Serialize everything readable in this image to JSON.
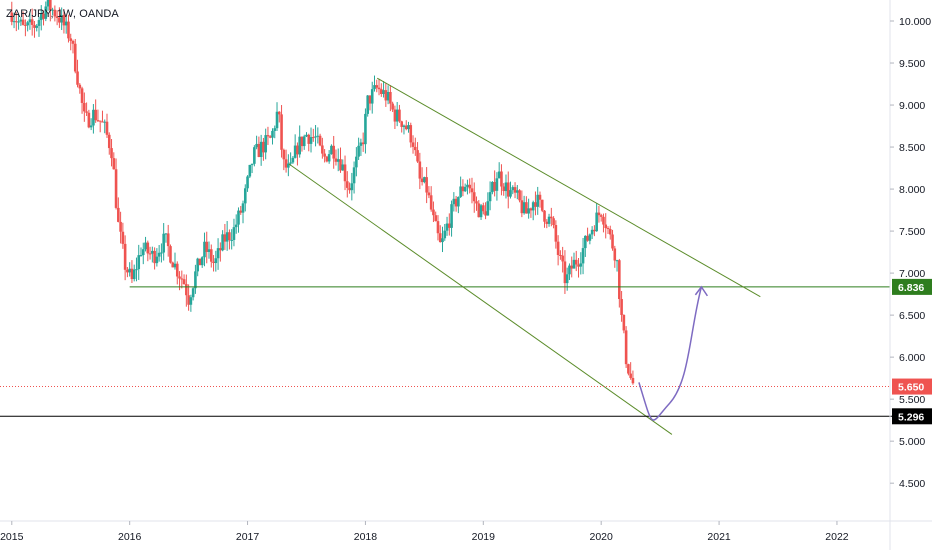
{
  "symbol_label": "ZAR/JPY, 1W, OANDA",
  "colors": {
    "up": "#26a69a",
    "down": "#ef5350",
    "channel": "#5b8c2a",
    "support": "#2e7d1e",
    "arrow": "#7e6bc2",
    "last_price": "#ef5350",
    "low_line": "#000000",
    "axis_text": "#131722"
  },
  "chart_data": {
    "type": "candlestick",
    "title": "ZAR/JPY, 1W, OANDA",
    "x_tick_labels": [
      "2015",
      "2016",
      "2017",
      "2018",
      "2019",
      "2020",
      "2021",
      "2022"
    ],
    "y_tick_labels": [
      "10.000",
      "9.500",
      "9.000",
      "8.500",
      "8.000",
      "7.500",
      "7.000",
      "6.500",
      "6.000",
      "5.500",
      "5.000",
      "4.500"
    ],
    "y_ticks": [
      10.0,
      9.5,
      9.0,
      8.5,
      8.0,
      7.5,
      7.0,
      6.5,
      6.0,
      5.5,
      5.0,
      4.5
    ],
    "xlim": [
      2014.9,
      2022.45
    ],
    "ylim": [
      4.05,
      10.25
    ],
    "grid": false,
    "price_path": [
      [
        2015.0,
        10.1
      ],
      [
        2015.1,
        9.9
      ],
      [
        2015.2,
        9.95
      ],
      [
        2015.3,
        10.2
      ],
      [
        2015.4,
        10.05
      ],
      [
        2015.5,
        9.8
      ],
      [
        2015.55,
        9.4
      ],
      [
        2015.62,
        8.8
      ],
      [
        2015.7,
        8.9
      ],
      [
        2015.78,
        8.75
      ],
      [
        2015.85,
        8.45
      ],
      [
        2015.9,
        7.6
      ],
      [
        2015.96,
        7.1
      ],
      [
        2016.02,
        6.9
      ],
      [
        2016.1,
        7.3
      ],
      [
        2016.2,
        7.2
      ],
      [
        2016.3,
        7.4
      ],
      [
        2016.38,
        7.1
      ],
      [
        2016.46,
        6.9
      ],
      [
        2016.5,
        6.7
      ],
      [
        2016.56,
        7.0
      ],
      [
        2016.64,
        7.3
      ],
      [
        2016.72,
        7.1
      ],
      [
        2016.8,
        7.4
      ],
      [
        2016.88,
        7.5
      ],
      [
        2016.96,
        7.8
      ],
      [
        2017.05,
        8.4
      ],
      [
        2017.12,
        8.5
      ],
      [
        2017.2,
        8.6
      ],
      [
        2017.26,
        8.95
      ],
      [
        2017.3,
        8.3
      ],
      [
        2017.36,
        8.2
      ],
      [
        2017.42,
        8.5
      ],
      [
        2017.5,
        8.65
      ],
      [
        2017.58,
        8.6
      ],
      [
        2017.64,
        8.35
      ],
      [
        2017.72,
        8.5
      ],
      [
        2017.8,
        8.3
      ],
      [
        2017.86,
        8.0
      ],
      [
        2017.92,
        8.3
      ],
      [
        2017.98,
        8.6
      ],
      [
        2018.02,
        9.05
      ],
      [
        2018.1,
        9.2
      ],
      [
        2018.18,
        9.1
      ],
      [
        2018.24,
        8.9
      ],
      [
        2018.32,
        8.8
      ],
      [
        2018.4,
        8.6
      ],
      [
        2018.46,
        8.1
      ],
      [
        2018.52,
        8.0
      ],
      [
        2018.58,
        7.6
      ],
      [
        2018.64,
        7.3
      ],
      [
        2018.7,
        7.6
      ],
      [
        2018.78,
        7.9
      ],
      [
        2018.86,
        8.1
      ],
      [
        2018.94,
        7.8
      ],
      [
        2019.0,
        7.7
      ],
      [
        2019.06,
        7.9
      ],
      [
        2019.12,
        8.2
      ],
      [
        2019.2,
        8.0
      ],
      [
        2019.28,
        7.9
      ],
      [
        2019.36,
        7.7
      ],
      [
        2019.44,
        7.9
      ],
      [
        2019.52,
        7.7
      ],
      [
        2019.58,
        7.6
      ],
      [
        2019.64,
        7.2
      ],
      [
        2019.7,
        6.9
      ],
      [
        2019.76,
        7.1
      ],
      [
        2019.82,
        7.2
      ],
      [
        2019.88,
        7.4
      ],
      [
        2019.94,
        7.6
      ],
      [
        2020.0,
        7.75
      ],
      [
        2020.04,
        7.6
      ],
      [
        2020.08,
        7.4
      ],
      [
        2020.13,
        7.2
      ],
      [
        2020.17,
        6.5
      ],
      [
        2020.21,
        6.0
      ],
      [
        2020.25,
        5.75
      ],
      [
        2020.28,
        5.65
      ]
    ],
    "annotations": {
      "support_price": 6.836,
      "support_price_label": "6.836",
      "last_price": 5.65,
      "last_price_label": "5.650",
      "low_price": 5.296,
      "low_price_label": "5.296",
      "upper_trendline": [
        [
          2018.1,
          9.32
        ],
        [
          2021.35,
          6.72
        ]
      ],
      "lower_trendline": [
        [
          2017.35,
          8.3
        ],
        [
          2020.6,
          5.08
        ]
      ],
      "support_line_start_x": 2016.0,
      "projection_path": [
        [
          2020.32,
          5.7
        ],
        [
          2020.45,
          5.32
        ],
        [
          2020.58,
          5.45
        ],
        [
          2020.75,
          6.3
        ],
        [
          2020.85,
          6.836
        ]
      ]
    }
  }
}
